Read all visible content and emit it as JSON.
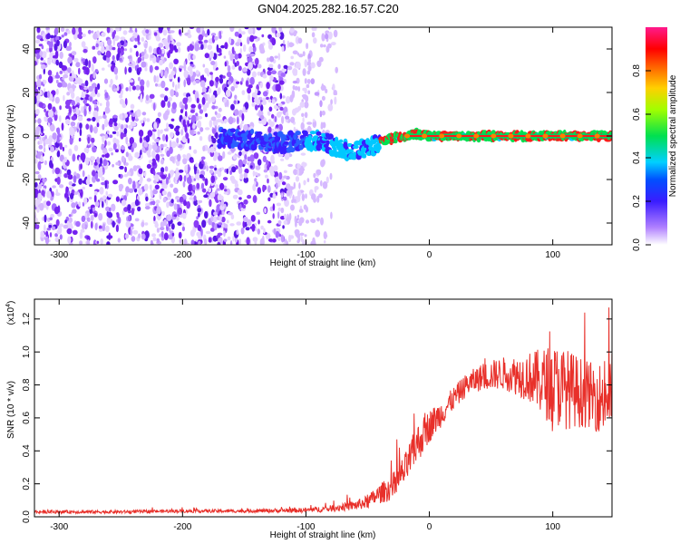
{
  "figure_title": "GN04.2025.282.16.57.C20",
  "colors": {
    "snr_line": "#e8302a",
    "ridge": "#ff1a1a",
    "colormap": [
      "#ffffff",
      "#d9b8ff",
      "#8a2be2",
      "#2020ff",
      "#00c8ff",
      "#00e040",
      "#c8ff00",
      "#ffb000",
      "#ff0000",
      "#ff1493"
    ]
  },
  "chart_data": [
    {
      "type": "heatmap",
      "title": "GN04.2025.282.16.57.C20",
      "xlabel": "Height of straight line (km)",
      "ylabel": "Frequency (Hz)",
      "xlim": [
        -320,
        148
      ],
      "ylim": [
        -50,
        50
      ],
      "xticks": [
        -300,
        -200,
        -100,
        0,
        100
      ],
      "xtick_labels": [
        "-300",
        "-200",
        "-100",
        "0",
        "100"
      ],
      "yticks": [
        -40,
        -20,
        0,
        20,
        40
      ],
      "ytick_labels": [
        "-40",
        "-20",
        "0",
        "20",
        "40"
      ],
      "noise_region_km": [
        -320,
        -75
      ],
      "ridge": {
        "x": [
          -170,
          -140,
          -120,
          -100,
          -90,
          -80,
          -70,
          -60,
          -50,
          -40,
          -30,
          -20,
          -10,
          0,
          50,
          100,
          148
        ],
        "y": [
          -1,
          -2,
          -3,
          -2,
          -2,
          -4,
          -6,
          -7,
          -5,
          -3,
          -1,
          0,
          1,
          0,
          0,
          0,
          0
        ]
      },
      "colorbar": {
        "label": "Normalized spectral amplitude",
        "range": [
          0,
          1
        ],
        "ticks": [
          0.0,
          0.2,
          0.4,
          0.6,
          0.8
        ],
        "tick_labels": [
          "0.0",
          "0.2",
          "0.4",
          "0.6",
          "0.8"
        ]
      }
    },
    {
      "type": "line",
      "xlabel": "Height of straight line (km)",
      "ylabel": "SNR (10 * v/v)",
      "y_scale_label": "(x10",
      "y_scale_exp": "4",
      "xlim": [
        -320,
        148
      ],
      "ylim": [
        0,
        1.32
      ],
      "xticks": [
        -300,
        -200,
        -100,
        0,
        100
      ],
      "xtick_labels": [
        "-300",
        "-200",
        "-100",
        "0",
        "100"
      ],
      "yticks": [
        0.0,
        0.2,
        0.4,
        0.6,
        0.8,
        1.0,
        1.2
      ],
      "ytick_labels": [
        "0.0",
        "0.2",
        "0.4",
        "0.6",
        "0.8",
        "1.0",
        "1.2"
      ],
      "series": [
        {
          "name": "SNR",
          "x": [
            -320,
            -300,
            -250,
            -200,
            -150,
            -100,
            -80,
            -60,
            -50,
            -40,
            -30,
            -20,
            -10,
            0,
            10,
            20,
            30,
            40,
            50,
            60,
            70,
            80,
            90,
            100,
            110,
            120,
            130,
            140,
            148
          ],
          "values": [
            0.03,
            0.03,
            0.03,
            0.035,
            0.035,
            0.04,
            0.05,
            0.07,
            0.09,
            0.14,
            0.18,
            0.28,
            0.44,
            0.55,
            0.63,
            0.72,
            0.8,
            0.84,
            0.86,
            0.87,
            0.86,
            0.85,
            0.82,
            0.8,
            0.78,
            0.76,
            0.74,
            0.72,
            0.75
          ],
          "noise_amplitude": [
            0.01,
            0.01,
            0.01,
            0.01,
            0.01,
            0.015,
            0.02,
            0.03,
            0.04,
            0.06,
            0.08,
            0.1,
            0.12,
            0.1,
            0.08,
            0.07,
            0.07,
            0.08,
            0.09,
            0.1,
            0.12,
            0.15,
            0.2,
            0.25,
            0.25,
            0.22,
            0.2,
            0.22,
            0.25
          ]
        }
      ]
    }
  ]
}
